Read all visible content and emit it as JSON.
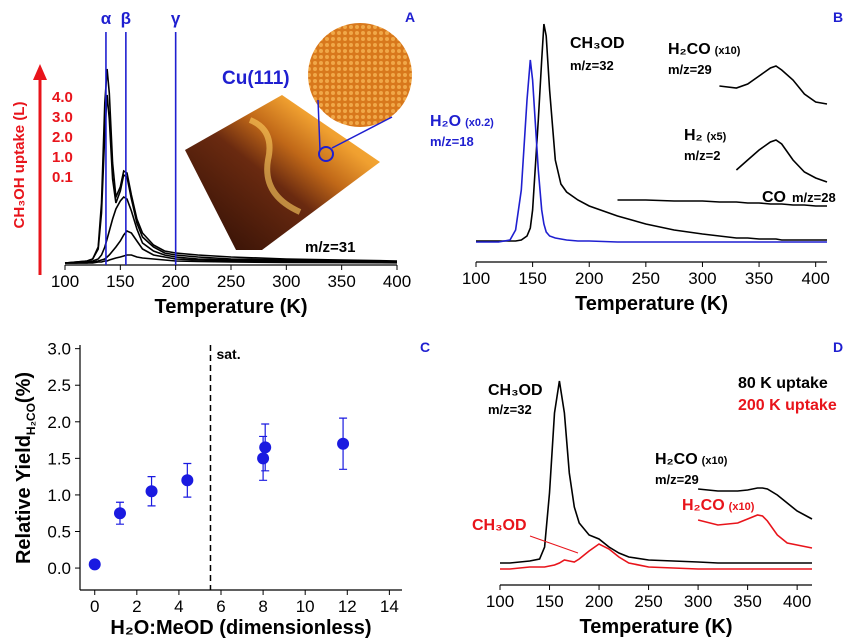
{
  "chart_data": [
    {
      "type": "line",
      "panel": "A",
      "x_label": "Temperature (K)",
      "xlim": [
        100,
        400
      ],
      "xticks": [
        100,
        150,
        200,
        250,
        300,
        350,
        400
      ],
      "uptake_label": "CH₃OH uptake (L)",
      "image_label": "Cu(111)",
      "mass_label": "m/z=31",
      "markers": [
        {
          "label": "α",
          "x": 137
        },
        {
          "label": "β",
          "x": 155
        },
        {
          "label": "γ",
          "x": 200
        }
      ],
      "marker_color": "#1f1fd0",
      "legend_color": "#e8141b",
      "x": [
        100,
        110,
        120,
        125,
        130,
        133,
        136,
        138,
        140,
        143,
        146,
        150,
        153,
        156,
        160,
        165,
        170,
        180,
        190,
        200,
        220,
        250,
        300,
        350,
        400
      ],
      "series": [
        {
          "name": "4.0",
          "color": "#000000",
          "values": [
            0,
            0.5,
            1,
            2,
            8,
            30,
            80,
            97,
            85,
            50,
            33,
            38,
            46,
            45,
            34,
            22,
            15,
            9,
            6,
            5,
            4,
            3,
            2,
            1.5,
            1
          ]
        },
        {
          "name": "3.0",
          "color": "#000000",
          "values": [
            0,
            0.5,
            1,
            2,
            7,
            25,
            65,
            84,
            72,
            42,
            30,
            36,
            44,
            43,
            32,
            20,
            13,
            8,
            5,
            4,
            3,
            2,
            1.5,
            1,
            0.8
          ]
        },
        {
          "name": "2.0",
          "color": "#000000",
          "values": [
            0,
            0,
            0.5,
            1,
            2,
            4,
            8,
            12,
            16,
            22,
            27,
            31,
            33,
            32,
            26,
            17,
            10,
            6,
            4,
            3,
            2,
            1.5,
            1,
            0.8,
            0.5
          ]
        },
        {
          "name": "1.0",
          "color": "#000000",
          "values": [
            0,
            0,
            0,
            0.5,
            1,
            1.5,
            2,
            3,
            4,
            6,
            8,
            11,
            14,
            16,
            15,
            11,
            7,
            4,
            3,
            2,
            1.5,
            1,
            0.8,
            0.5,
            0.3
          ]
        },
        {
          "name": "0.1",
          "color": "#000000",
          "values": [
            0,
            0,
            0,
            0,
            0.5,
            0.5,
            1,
            1,
            1.5,
            2,
            2.5,
            3,
            3.5,
            4,
            4,
            3,
            2.5,
            2,
            1.5,
            1,
            0.8,
            0.5,
            0.3,
            0.2,
            0.1
          ]
        }
      ]
    },
    {
      "type": "line",
      "panel": "B",
      "x_label": "Temperature (K)",
      "xlim": [
        100,
        410
      ],
      "xticks": [
        100,
        150,
        200,
        250,
        300,
        350,
        400
      ],
      "x": [
        100,
        110,
        120,
        130,
        135,
        140,
        145,
        148,
        150,
        155,
        158,
        160,
        162,
        165,
        170,
        175,
        180,
        190,
        200,
        225,
        250,
        275,
        300,
        315,
        330,
        340,
        350,
        360,
        365,
        370,
        380,
        390,
        400,
        410
      ],
      "series": [
        {
          "name": "CH₃OD",
          "note": "m/z=32",
          "color": "#000000",
          "values": [
            9.5,
            9.5,
            9.5,
            9.5,
            9.5,
            10,
            12,
            16,
            25,
            70,
            100,
            118,
            112,
            85,
            50,
            38,
            34,
            30,
            27,
            22,
            18,
            15,
            13,
            12,
            11,
            11,
            10.5,
            10.5,
            10.5,
            10,
            10,
            10,
            10,
            10
          ]
        },
        {
          "name": "H₂O",
          "factor": "(x0.2)",
          "note": "m/z=18",
          "color": "#1f1fd0",
          "values": [
            9,
            9,
            9,
            10,
            15,
            35,
            80,
            100,
            90,
            45,
            25,
            18,
            14,
            12,
            11,
            10.5,
            10,
            9.5,
            9.5,
            9,
            9,
            9,
            9,
            9,
            9,
            9,
            9,
            9,
            9,
            9,
            9,
            9,
            9,
            9
          ]
        },
        {
          "name": "H₂CO",
          "factor": "(x10)",
          "note": "m/z=29",
          "color": "#000000",
          "values": [
            null,
            null,
            null,
            null,
            null,
            null,
            null,
            null,
            null,
            null,
            null,
            null,
            null,
            null,
            null,
            null,
            null,
            null,
            null,
            null,
            null,
            null,
            null,
            87,
            86,
            88,
            92,
            96,
            97,
            95,
            90,
            83,
            79,
            78
          ]
        },
        {
          "name": "H₂",
          "factor": "(x5)",
          "note": "m/z=2",
          "color": "#000000",
          "values": [
            null,
            null,
            null,
            null,
            null,
            null,
            null,
            null,
            null,
            null,
            null,
            null,
            null,
            null,
            null,
            null,
            null,
            null,
            null,
            null,
            null,
            null,
            null,
            null,
            45,
            50,
            55,
            59,
            60,
            58,
            50,
            44,
            41,
            39
          ]
        },
        {
          "name": "CO",
          "note": "m/z=28",
          "color": "#000000",
          "values": [
            null,
            null,
            null,
            null,
            null,
            null,
            null,
            null,
            null,
            null,
            null,
            null,
            null,
            null,
            null,
            null,
            null,
            null,
            null,
            30,
            30,
            29.5,
            29.5,
            29,
            29,
            28.5,
            28.5,
            28,
            28,
            28,
            27.5,
            27.5,
            27,
            27
          ]
        }
      ]
    },
    {
      "type": "scatter",
      "panel": "C",
      "x_label": "H₂O:MeOD (dimensionless)",
      "y_label": "Relative Yield",
      "y_label_sub": "H₂CO",
      "y_label_unit": "(%)",
      "xlim": [
        -0.7,
        14.6
      ],
      "xticks": [
        0,
        2,
        4,
        6,
        8,
        10,
        12,
        14
      ],
      "ylim": [
        -0.3,
        3.05
      ],
      "yticks": [
        {
          "value": 0,
          "label": "0.0"
        },
        {
          "value": 0.5,
          "label": "0.5"
        },
        {
          "value": 1,
          "label": "1.0"
        },
        {
          "value": 1.5,
          "label": "1.5"
        },
        {
          "value": 2,
          "label": "2.0"
        },
        {
          "value": 2.5,
          "label": "2.5"
        },
        {
          "value": 3,
          "label": "3.0"
        }
      ],
      "threshold": {
        "x": 5.5,
        "label": "sat."
      },
      "color": "#1a1ae0",
      "x": [
        0,
        1.2,
        2.7,
        4.4,
        8,
        8.1,
        11.8
      ],
      "values": [
        0.05,
        0.75,
        1.05,
        1.2,
        1.5,
        1.65,
        1.7
      ],
      "errors": [
        null,
        0.15,
        0.2,
        0.23,
        0.3,
        0.32,
        0.35
      ]
    },
    {
      "type": "line",
      "panel": "D",
      "x_label": "Temperature (K)",
      "xlim": [
        100,
        415
      ],
      "xticks": [
        100,
        150,
        200,
        250,
        300,
        350,
        400
      ],
      "legend": [
        {
          "label": "80 K uptake",
          "color": "#000000"
        },
        {
          "label": "200 K uptake",
          "color": "#e8141b"
        }
      ],
      "x": [
        100,
        110,
        120,
        130,
        140,
        145,
        150,
        155,
        160,
        165,
        170,
        175,
        180,
        190,
        200,
        210,
        220,
        230,
        250,
        275,
        300,
        320,
        340,
        350,
        360,
        365,
        370,
        380,
        390,
        400,
        415
      ],
      "series": [
        {
          "name": "CH₃OD",
          "note": "m/z=32",
          "color": "#000000",
          "values": [
            10,
            10,
            10.5,
            11,
            12,
            18,
            45,
            85,
            101,
            85,
            55,
            38,
            30,
            24,
            22,
            18,
            15,
            13,
            11.5,
            11,
            10.5,
            10,
            10,
            10,
            10,
            10,
            10,
            10,
            10,
            10,
            10
          ]
        },
        {
          "name": "CH₃OD",
          "color": "#e8141b",
          "values": [
            7,
            7,
            7.5,
            8,
            8,
            8,
            8.5,
            9,
            10,
            11.5,
            11,
            10.5,
            12,
            16,
            19.5,
            17,
            13,
            10,
            8,
            7.5,
            7,
            7,
            7,
            7,
            7,
            7,
            7,
            7,
            7,
            7,
            7
          ]
        },
        {
          "name": "H₂CO",
          "factor": "(x10)",
          "note": "m/z=29",
          "color": "#000000",
          "values": [
            null,
            null,
            null,
            null,
            null,
            null,
            null,
            null,
            null,
            null,
            null,
            null,
            null,
            null,
            null,
            null,
            null,
            null,
            null,
            null,
            47,
            46,
            46,
            46.5,
            47.5,
            47.5,
            47,
            44,
            40,
            36,
            32
          ]
        },
        {
          "name": "H₂CO",
          "factor": "(x10)",
          "color": "#e8141b",
          "values": [
            null,
            null,
            null,
            null,
            null,
            null,
            null,
            null,
            null,
            null,
            null,
            null,
            null,
            null,
            null,
            null,
            null,
            null,
            null,
            null,
            31.5,
            29,
            30,
            32,
            34,
            33.5,
            31,
            24,
            20,
            19,
            17.5
          ]
        }
      ]
    }
  ]
}
